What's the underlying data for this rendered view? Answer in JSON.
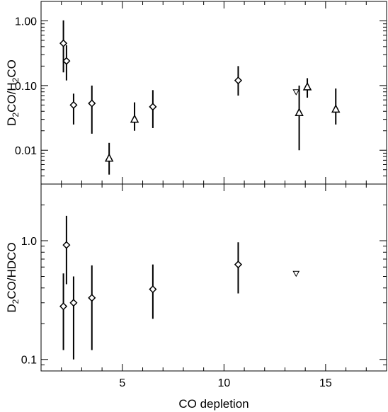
{
  "chart_data": [
    {
      "type": "scatter",
      "panel": "top",
      "ylabel_parts": [
        {
          "text": "D",
          "sub": false
        },
        {
          "text": "2",
          "sub": true
        },
        {
          "text": "CO/H",
          "sub": false
        },
        {
          "text": "2",
          "sub": true
        },
        {
          "text": "CO",
          "sub": false
        }
      ],
      "yscale": "log",
      "xlim": [
        1,
        18
      ],
      "ylim": [
        0.003,
        2.0
      ],
      "y_ticks": [
        {
          "value": 0.01,
          "label": "0.01"
        },
        {
          "value": 0.1,
          "label": "0.10"
        },
        {
          "value": 1.0,
          "label": "1.00"
        }
      ],
      "grid": false,
      "series": [
        {
          "marker": "diamond",
          "points": [
            {
              "x": 2.1,
              "y": 0.45,
              "ylo": 0.16,
              "yhi": 1.02
            },
            {
              "x": 2.25,
              "y": 0.24,
              "ylo": 0.12,
              "yhi": 0.42
            },
            {
              "x": 2.6,
              "y": 0.05,
              "ylo": 0.025,
              "yhi": 0.075
            },
            {
              "x": 3.5,
              "y": 0.053,
              "ylo": 0.018,
              "yhi": 0.1
            },
            {
              "x": 6.5,
              "y": 0.047,
              "ylo": 0.022,
              "yhi": 0.085
            },
            {
              "x": 10.7,
              "y": 0.12,
              "ylo": 0.07,
              "yhi": 0.2
            }
          ]
        },
        {
          "marker": "triangle-up",
          "points": [
            {
              "x": 4.35,
              "y": 0.0075,
              "ylo": 0.0042,
              "yhi": 0.013
            },
            {
              "x": 5.6,
              "y": 0.03,
              "ylo": 0.02,
              "yhi": 0.055
            },
            {
              "x": 13.7,
              "y": 0.038,
              "ylo": 0.01,
              "yhi": 0.1
            },
            {
              "x": 14.1,
              "y": 0.095,
              "ylo": 0.065,
              "yhi": 0.13
            },
            {
              "x": 15.5,
              "y": 0.043,
              "ylo": 0.025,
              "yhi": 0.09
            }
          ]
        },
        {
          "marker": "triangle-down",
          "points": [
            {
              "x": 13.55,
              "y": 0.08
            }
          ]
        }
      ]
    },
    {
      "type": "scatter",
      "panel": "bottom",
      "ylabel_parts": [
        {
          "text": "D",
          "sub": false
        },
        {
          "text": "2",
          "sub": true
        },
        {
          "text": "CO/HDCO",
          "sub": false
        }
      ],
      "xlabel": "CO depletion",
      "yscale": "log",
      "xlim": [
        1,
        18
      ],
      "ylim": [
        0.08,
        3.0
      ],
      "x_ticks": [
        {
          "value": 5,
          "label": "5"
        },
        {
          "value": 10,
          "label": "10"
        },
        {
          "value": 15,
          "label": "15"
        }
      ],
      "y_ticks": [
        {
          "value": 0.1,
          "label": "0.1"
        },
        {
          "value": 1.0,
          "label": "1.0"
        }
      ],
      "grid": false,
      "series": [
        {
          "marker": "diamond",
          "points": [
            {
              "x": 2.1,
              "y": 0.28,
              "ylo": 0.12,
              "yhi": 0.53
            },
            {
              "x": 2.25,
              "y": 0.92,
              "ylo": 0.43,
              "yhi": 1.62
            },
            {
              "x": 2.6,
              "y": 0.3,
              "ylo": 0.1,
              "yhi": 0.5
            },
            {
              "x": 3.5,
              "y": 0.33,
              "ylo": 0.12,
              "yhi": 0.62
            },
            {
              "x": 6.5,
              "y": 0.39,
              "ylo": 0.22,
              "yhi": 0.63
            },
            {
              "x": 10.7,
              "y": 0.63,
              "ylo": 0.36,
              "yhi": 0.97
            }
          ]
        },
        {
          "marker": "triangle-down",
          "points": [
            {
              "x": 13.55,
              "y": 0.53
            }
          ]
        }
      ]
    }
  ]
}
